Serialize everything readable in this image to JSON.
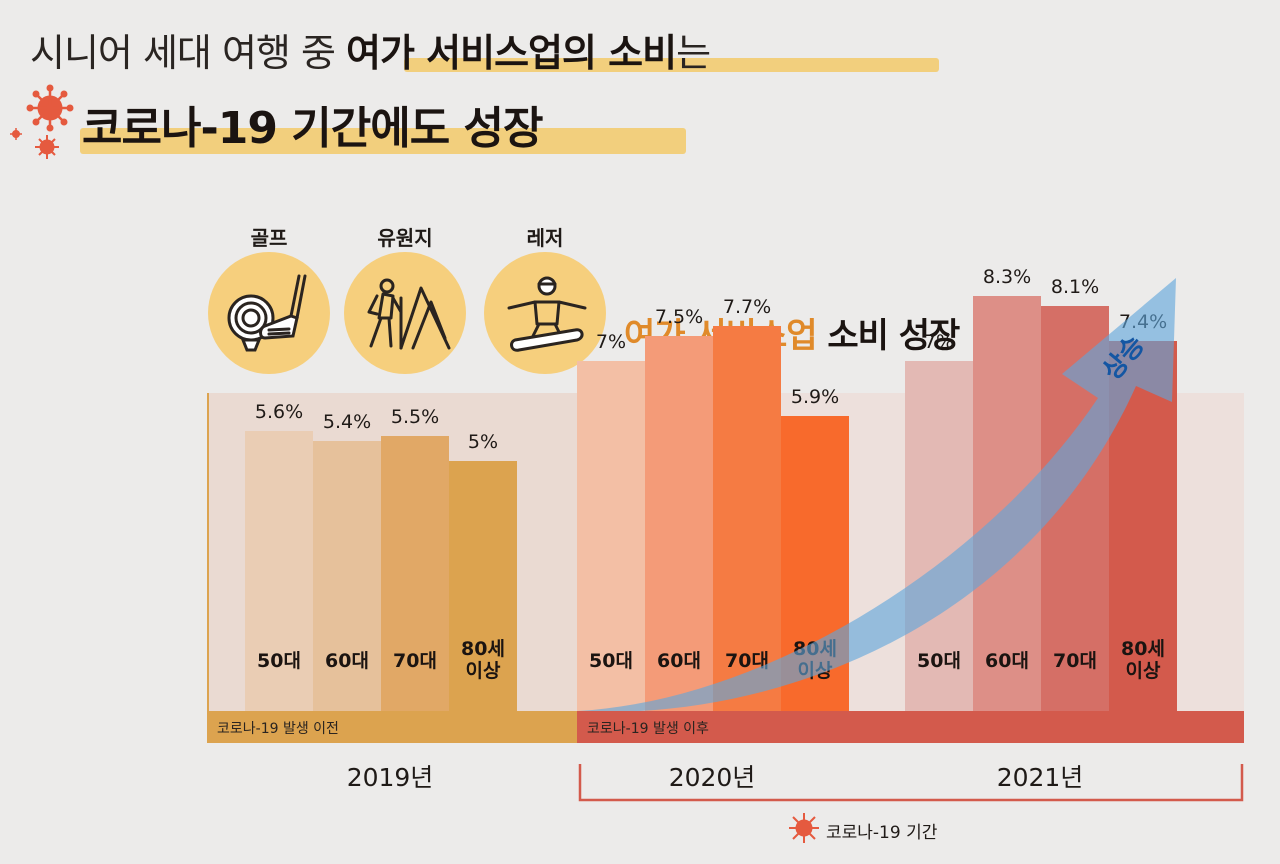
{
  "header": {
    "line1_light": "시니어 세대 여행 중 ",
    "line1_bold": "여가 서비스업의 소비",
    "line1_tail": "는",
    "line2": "코로나-19 기간에도 성장"
  },
  "categories": [
    {
      "label": "골프",
      "icon": "golf-icon"
    },
    {
      "label": "유원지",
      "icon": "hiking-icon"
    },
    {
      "label": "레저",
      "icon": "snowboard-icon"
    }
  ],
  "growth": {
    "part1": "여가 서비스업",
    "part2": " 소비 성장"
  },
  "arrow_label": "상승",
  "colors": {
    "y2019": [
      "#eacdb4",
      "#e6c19b",
      "#e1a866",
      "#dca34f"
    ],
    "y2020": [
      "#f3bfa5",
      "#f49b78",
      "#f57b43",
      "#f86a2c"
    ],
    "y2021": [
      "#e3b9b4",
      "#dd8f87",
      "#d56f66",
      "#d35a4c"
    ],
    "arrow": "#5fa6dc",
    "covid": "#e55a3f"
  },
  "chart_data": {
    "type": "bar",
    "title": "여가 서비스업 소비 성장",
    "ylim": [
      0,
      10
    ],
    "categories": [
      "50대",
      "60대",
      "70대",
      "80세 이상"
    ],
    "series": [
      {
        "name": "2019년",
        "values": [
          5.6,
          5.4,
          5.5,
          5.0
        ],
        "labels": [
          "5.6%",
          "5.4%",
          "5.5%",
          "5%"
        ]
      },
      {
        "name": "2020년",
        "values": [
          7.0,
          7.5,
          7.7,
          5.9
        ],
        "labels": [
          "7%",
          "7.5%",
          "7.7%",
          "5.9%"
        ]
      },
      {
        "name": "2021년",
        "values": [
          7.0,
          8.3,
          8.1,
          7.4
        ],
        "labels": [
          "7%",
          "8.3%",
          "8.1%",
          "7.4%"
        ]
      }
    ],
    "age_labels": [
      "50대",
      "60대",
      "70대",
      "80세\n이상"
    ],
    "periods": {
      "before": "코로나-19 발생 이전",
      "after": "코로나-19 발생 이후"
    },
    "covid_period_label": "코로나-19 기간",
    "legend": "none",
    "grid": false
  }
}
